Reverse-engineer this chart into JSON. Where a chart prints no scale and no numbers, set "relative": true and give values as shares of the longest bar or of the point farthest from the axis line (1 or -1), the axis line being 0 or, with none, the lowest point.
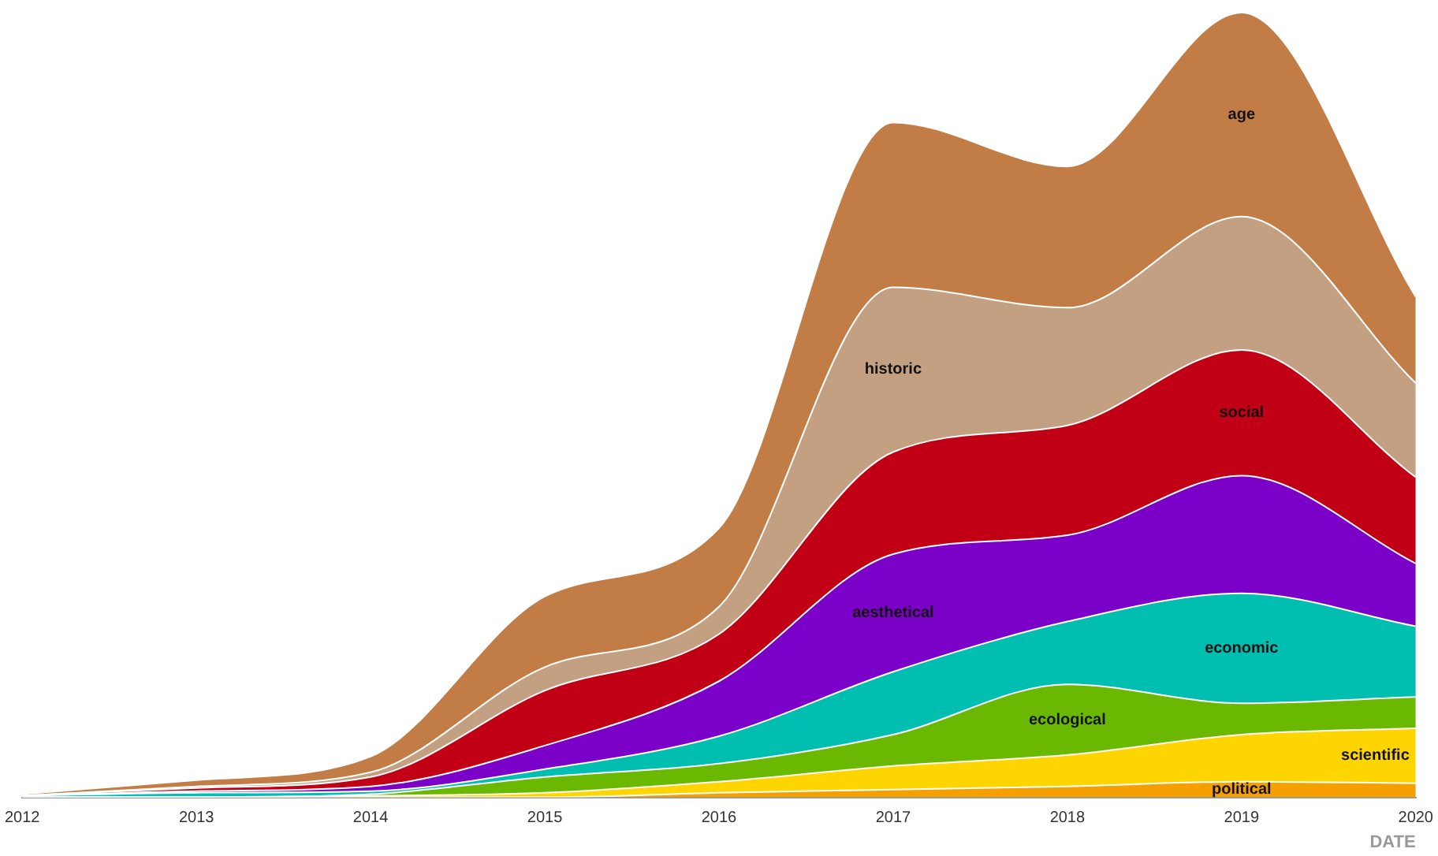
{
  "chart_data": {
    "type": "area",
    "stacked": true,
    "relative": true,
    "xlabel": "DATE",
    "x": [
      2012,
      2013,
      2014,
      2015,
      2016,
      2017,
      2018,
      2019,
      2020
    ],
    "xlim": [
      2012,
      2020
    ],
    "xticks": [
      2012,
      2013,
      2014,
      2015,
      2016,
      2017,
      2018,
      2019,
      2020
    ],
    "series": [
      {
        "name": "political",
        "color": "#f5a000",
        "values": [
          0,
          0,
          0,
          0,
          0.006,
          0.01,
          0.014,
          0.02,
          0.018
        ]
      },
      {
        "name": "scientific",
        "color": "#ffd500",
        "values": [
          0,
          0,
          0.002,
          0.006,
          0.014,
          0.03,
          0.04,
          0.06,
          0.07
        ]
      },
      {
        "name": "ecological",
        "color": "#6bb800",
        "values": [
          0,
          0,
          0.002,
          0.02,
          0.023,
          0.04,
          0.09,
          0.04,
          0.04
        ]
      },
      {
        "name": "economic",
        "color": "#00bfb0",
        "values": [
          0.002,
          0.006,
          0.004,
          0.01,
          0.035,
          0.08,
          0.08,
          0.14,
          0.09
        ]
      },
      {
        "name": "aesthetical",
        "color": "#7b00c8",
        "values": [
          0,
          0.002,
          0.006,
          0.03,
          0.07,
          0.15,
          0.11,
          0.15,
          0.08
        ]
      },
      {
        "name": "social",
        "color": "#c20015",
        "values": [
          0,
          0.004,
          0.012,
          0.07,
          0.06,
          0.13,
          0.14,
          0.16,
          0.11
        ]
      },
      {
        "name": "historic",
        "color": "#c4a083",
        "values": [
          0,
          0.002,
          0.006,
          0.03,
          0.035,
          0.21,
          0.15,
          0.17,
          0.12
        ]
      },
      {
        "name": "age",
        "color": "#c17d45",
        "values": [
          0.002,
          0.008,
          0.02,
          0.09,
          0.1,
          0.21,
          0.18,
          0.26,
          0.11
        ]
      }
    ]
  }
}
